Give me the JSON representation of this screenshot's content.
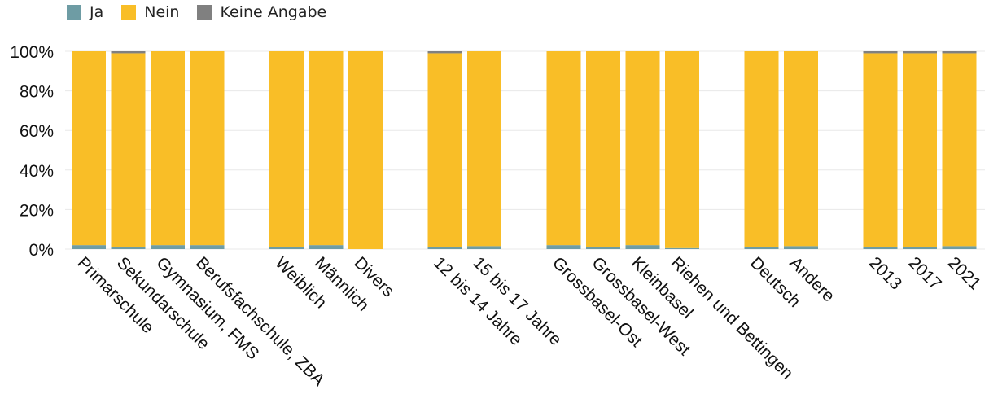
{
  "chart_data": {
    "type": "bar",
    "stacked": true,
    "legend": {
      "placement": "top-left"
    },
    "grid": true,
    "ylim": [
      0,
      100
    ],
    "y_ticks": [
      "0%",
      "20%",
      "40%",
      "60%",
      "80%",
      "100%"
    ],
    "series": [
      {
        "name": "Ja",
        "color": "#6e9ca4"
      },
      {
        "name": "Nein",
        "color": "#f9be27"
      },
      {
        "name": "Keine Angabe",
        "color": "#808080"
      }
    ],
    "groups": [
      {
        "bars": [
          {
            "label": "Primarschule",
            "values": [
              2,
              98,
              0
            ]
          },
          {
            "label": "Sekundarschule",
            "values": [
              1,
              98,
              1
            ]
          },
          {
            "label": "Gymnasium, FMS",
            "values": [
              2,
              98,
              0
            ]
          },
          {
            "label": "Berufsfachschule, ZBA",
            "values": [
              2,
              98,
              0
            ]
          }
        ]
      },
      {
        "bars": [
          {
            "label": "Weiblich",
            "values": [
              1,
              99,
              0
            ]
          },
          {
            "label": "Männlich",
            "values": [
              2,
              98,
              0
            ]
          },
          {
            "label": "Divers",
            "values": [
              0,
              100,
              0
            ]
          }
        ]
      },
      {
        "bars": [
          {
            "label": "12 bis 14 Jahre",
            "values": [
              1,
              98,
              1
            ]
          },
          {
            "label": "15 bis 17 Jahre",
            "values": [
              1.5,
              98.5,
              0
            ]
          }
        ]
      },
      {
        "bars": [
          {
            "label": "Grossbasel-Ost",
            "values": [
              2,
              98,
              0
            ]
          },
          {
            "label": "Grossbasel-West",
            "values": [
              1,
              99,
              0
            ]
          },
          {
            "label": "Kleinbasel",
            "values": [
              2,
              98,
              0
            ]
          },
          {
            "label": "Riehen und Bettingen",
            "values": [
              0.5,
              99.5,
              0
            ]
          }
        ]
      },
      {
        "bars": [
          {
            "label": "Deutsch",
            "values": [
              1,
              99,
              0
            ]
          },
          {
            "label": "Andere",
            "values": [
              1.5,
              98.5,
              0
            ]
          }
        ]
      },
      {
        "bars": [
          {
            "label": "2013",
            "values": [
              1,
              98,
              1
            ]
          },
          {
            "label": "2017",
            "values": [
              1,
              98,
              1
            ]
          },
          {
            "label": "2021",
            "values": [
              1.5,
              97.5,
              1
            ]
          }
        ]
      }
    ]
  }
}
